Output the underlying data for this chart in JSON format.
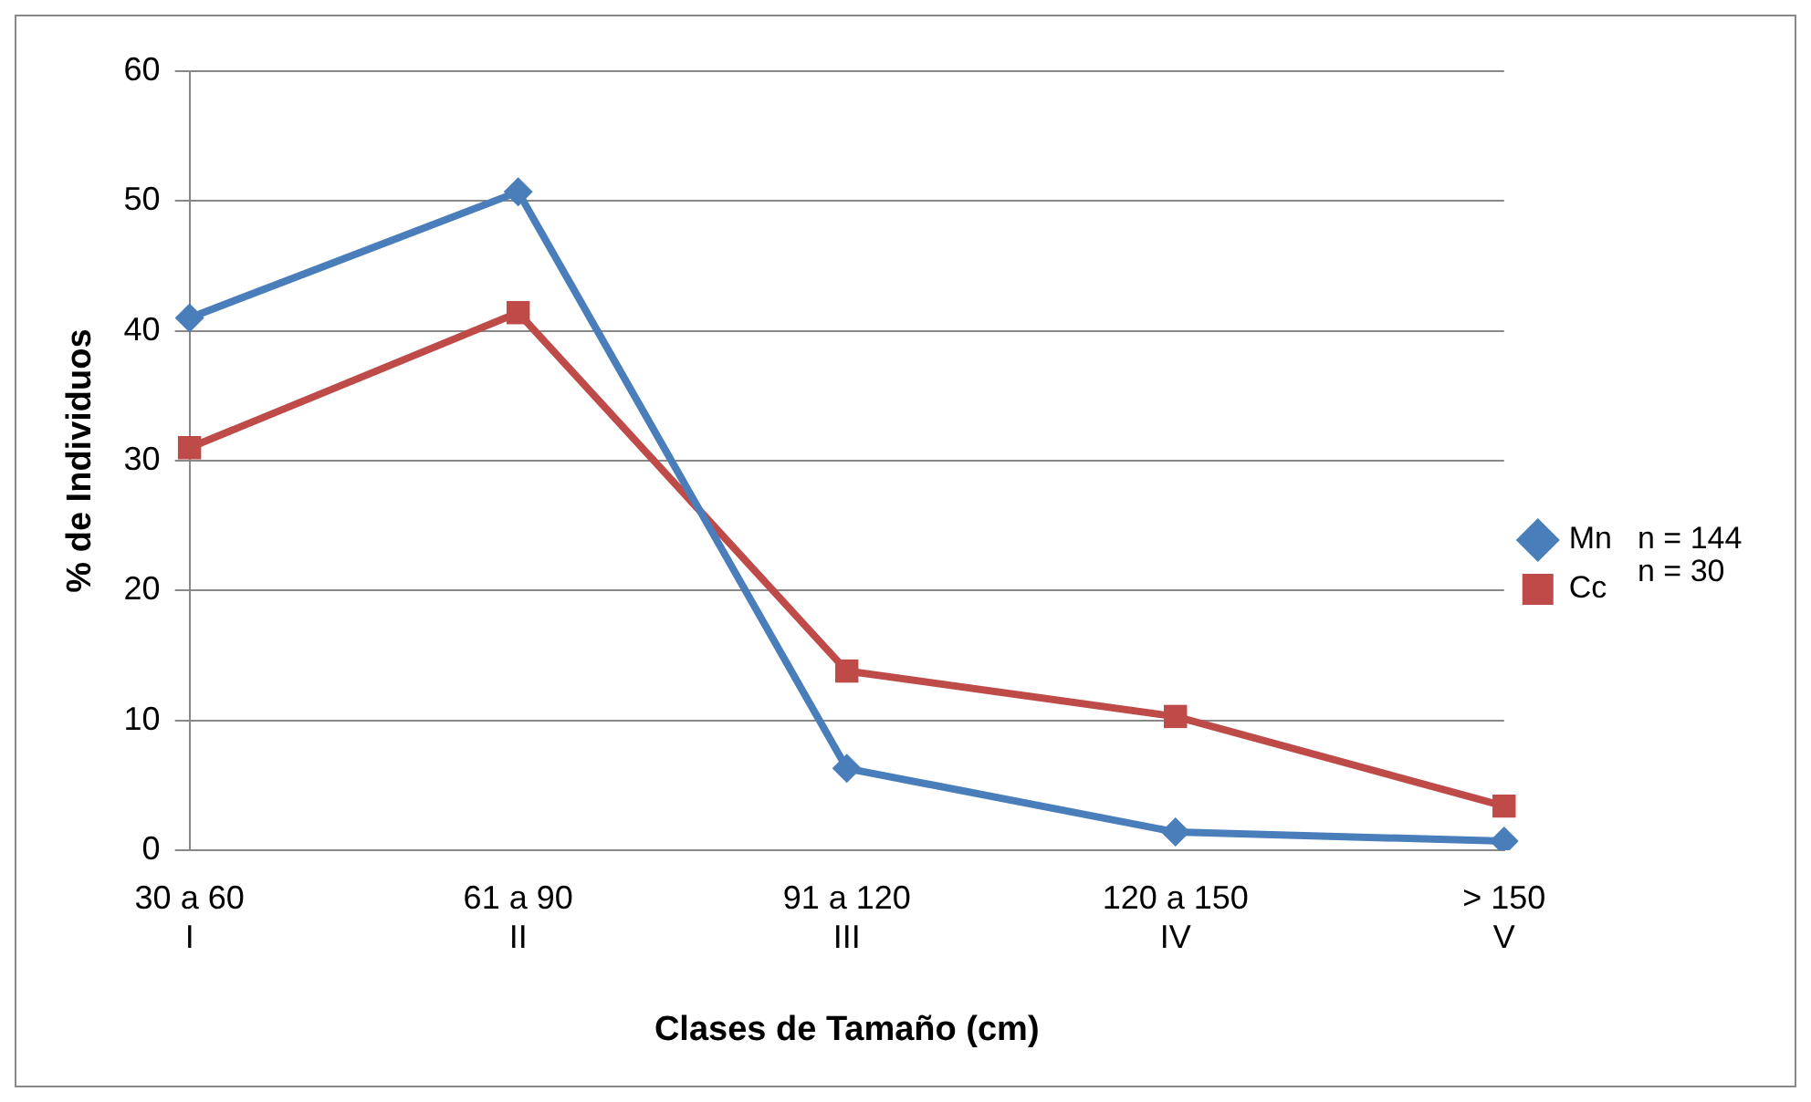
{
  "chart_data": {
    "type": "line",
    "xlabel": "Clases de Tamaño (cm)",
    "ylabel": "% de Individuos",
    "categories": [
      "30 a 60\nI",
      "61 a 90\nII",
      "91 a 120\nIII",
      "120 a 150\nIV",
      "> 150\nV"
    ],
    "series": [
      {
        "name": "Mn",
        "color": "#4a7ebb",
        "marker": "diamond",
        "values": [
          41,
          50.7,
          6.3,
          1.4,
          0.7
        ]
      },
      {
        "name": "Cc",
        "color": "#be4b48",
        "marker": "square",
        "values": [
          31,
          41.4,
          13.8,
          10.3,
          3.4
        ]
      }
    ],
    "ylim": [
      0,
      60
    ],
    "yticks": [
      0,
      10,
      20,
      30,
      40,
      50,
      60
    ],
    "grid": "y",
    "legend": "right",
    "line_style": "solid",
    "annotations": [
      "n = 144",
      "n = 30"
    ]
  }
}
